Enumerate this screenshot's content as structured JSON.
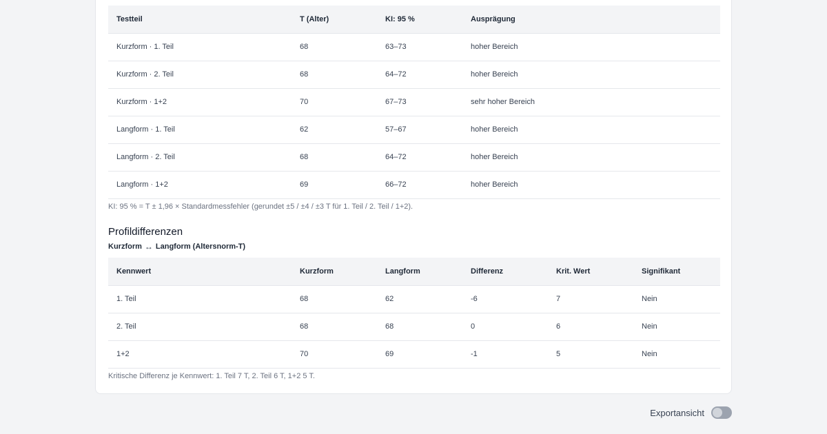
{
  "results_table": {
    "headers": [
      "Testteil",
      "T (Alter)",
      "KI: 95 %",
      "Ausprägung"
    ],
    "rows": [
      [
        "Kurzform · 1. Teil",
        "68",
        "63–73",
        "hoher Bereich"
      ],
      [
        "Kurzform · 2. Teil",
        "68",
        "64–72",
        "hoher Bereich"
      ],
      [
        "Kurzform · 1+2",
        "70",
        "67–73",
        "sehr hoher Bereich"
      ],
      [
        "Langform · 1. Teil",
        "62",
        "57–67",
        "hoher Bereich"
      ],
      [
        "Langform · 2. Teil",
        "68",
        "64–72",
        "hoher Bereich"
      ],
      [
        "Langform · 1+2",
        "69",
        "66–72",
        "hoher Bereich"
      ]
    ],
    "note": "KI: 95 % = T ± 1,96 × Standardmessfehler (gerundet ±5 / ±4 / ±3 T für 1. Teil / 2. Teil / 1+2)."
  },
  "profile": {
    "title": "Profildifferenzen",
    "subtitle_left": "Kurzform",
    "subtitle_arrow": "↔",
    "subtitle_right": "Langform (Altersnorm-T)",
    "headers": [
      "Kennwert",
      "Kurzform",
      "Langform",
      "Differenz",
      "Krit. Wert",
      "Signifikant"
    ],
    "rows": [
      [
        "1. Teil",
        "68",
        "62",
        "-6",
        "7",
        "Nein"
      ],
      [
        "2. Teil",
        "68",
        "68",
        "0",
        "6",
        "Nein"
      ],
      [
        "1+2",
        "70",
        "69",
        "-1",
        "5",
        "Nein"
      ]
    ],
    "note": "Kritische Differenz je Kennwert: 1. Teil 7 T, 2. Teil 6 T, 1+2 5 T."
  },
  "export": {
    "label": "Exportansicht",
    "toggle_on": false
  },
  "colors": {
    "header_bg": "#f3f4f6",
    "border": "#e5e7eb",
    "toggle_off": "#9ca3af"
  }
}
